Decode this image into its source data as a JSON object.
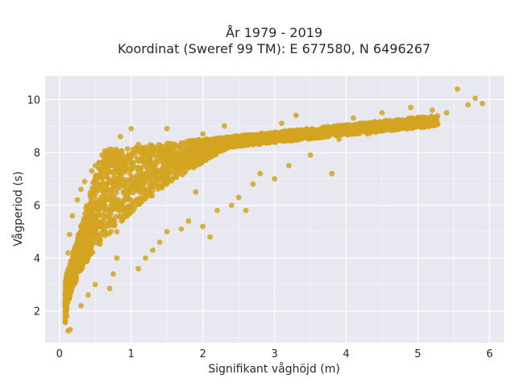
{
  "chart_data": {
    "type": "scatter",
    "title_lines": [
      "År 1979 - 2019",
      "Koordinat (Sweref 99 TM): E 677580, N 6496267"
    ],
    "xlabel": "Signifikant våghöjd (m)",
    "ylabel": "Vågperiod (s)",
    "xlim": [
      -0.2,
      6.2
    ],
    "ylim": [
      0.8,
      10.9
    ],
    "xticks": [
      0,
      1,
      2,
      3,
      4,
      5,
      6
    ],
    "yticks": [
      2,
      4,
      6,
      8,
      10
    ],
    "xtick_labels": [
      "0",
      "1",
      "2",
      "3",
      "4",
      "5",
      "6"
    ],
    "ytick_labels": [
      "2",
      "4",
      "6",
      "8",
      "10"
    ],
    "grid": true,
    "legend": "none",
    "colors": {
      "marker": "#d4a521",
      "plot_background": "#e8e8f0",
      "grid": "#ffffff"
    },
    "points": [
      {
        "x": 0.12,
        "y": 1.25
      },
      {
        "x": 0.15,
        "y": 1.3
      },
      {
        "x": 0.1,
        "y": 1.8
      },
      {
        "x": 0.08,
        "y": 2.6
      },
      {
        "x": 0.1,
        "y": 3.4
      },
      {
        "x": 0.12,
        "y": 4.2
      },
      {
        "x": 0.14,
        "y": 4.9
      },
      {
        "x": 0.18,
        "y": 5.6
      },
      {
        "x": 0.25,
        "y": 6.2
      },
      {
        "x": 0.3,
        "y": 6.6
      },
      {
        "x": 0.35,
        "y": 6.9
      },
      {
        "x": 0.45,
        "y": 7.3
      },
      {
        "x": 0.5,
        "y": 7.5
      },
      {
        "x": 0.55,
        "y": 7.6
      },
      {
        "x": 0.3,
        "y": 2.2
      },
      {
        "x": 0.4,
        "y": 2.6
      },
      {
        "x": 0.5,
        "y": 3.0
      },
      {
        "x": 0.7,
        "y": 2.85
      },
      {
        "x": 0.75,
        "y": 3.4
      },
      {
        "x": 0.8,
        "y": 4.0
      },
      {
        "x": 0.8,
        "y": 5.0
      },
      {
        "x": 0.8,
        "y": 6.0
      },
      {
        "x": 0.8,
        "y": 7.0
      },
      {
        "x": 0.85,
        "y": 8.6
      },
      {
        "x": 1.0,
        "y": 8.9
      },
      {
        "x": 1.1,
        "y": 8.3
      },
      {
        "x": 1.1,
        "y": 3.6
      },
      {
        "x": 1.2,
        "y": 4.0
      },
      {
        "x": 1.3,
        "y": 4.3
      },
      {
        "x": 1.4,
        "y": 4.6
      },
      {
        "x": 1.5,
        "y": 5.0
      },
      {
        "x": 1.5,
        "y": 7.5
      },
      {
        "x": 1.5,
        "y": 8.9
      },
      {
        "x": 1.7,
        "y": 5.1
      },
      {
        "x": 1.8,
        "y": 5.4
      },
      {
        "x": 1.9,
        "y": 6.5
      },
      {
        "x": 2.0,
        "y": 5.2
      },
      {
        "x": 2.0,
        "y": 8.7
      },
      {
        "x": 2.1,
        "y": 4.8
      },
      {
        "x": 2.2,
        "y": 5.8
      },
      {
        "x": 2.3,
        "y": 9.0
      },
      {
        "x": 2.4,
        "y": 6.0
      },
      {
        "x": 2.5,
        "y": 6.3
      },
      {
        "x": 2.6,
        "y": 5.8
      },
      {
        "x": 2.7,
        "y": 6.8
      },
      {
        "x": 2.8,
        "y": 7.2
      },
      {
        "x": 2.8,
        "y": 8.4
      },
      {
        "x": 3.0,
        "y": 7.0
      },
      {
        "x": 3.1,
        "y": 9.1
      },
      {
        "x": 3.2,
        "y": 7.5
      },
      {
        "x": 3.3,
        "y": 9.4
      },
      {
        "x": 3.5,
        "y": 7.9
      },
      {
        "x": 3.6,
        "y": 8.6
      },
      {
        "x": 3.8,
        "y": 7.2
      },
      {
        "x": 3.9,
        "y": 8.5
      },
      {
        "x": 4.0,
        "y": 8.8
      },
      {
        "x": 4.1,
        "y": 9.3
      },
      {
        "x": 4.3,
        "y": 8.7
      },
      {
        "x": 4.5,
        "y": 9.5
      },
      {
        "x": 4.7,
        "y": 9.1
      },
      {
        "x": 4.9,
        "y": 9.7
      },
      {
        "x": 5.0,
        "y": 9.2
      },
      {
        "x": 5.2,
        "y": 9.6
      },
      {
        "x": 5.4,
        "y": 9.5
      },
      {
        "x": 5.55,
        "y": 10.4
      },
      {
        "x": 5.7,
        "y": 9.8
      },
      {
        "x": 5.8,
        "y": 10.05
      },
      {
        "x": 5.9,
        "y": 9.85
      }
    ]
  }
}
